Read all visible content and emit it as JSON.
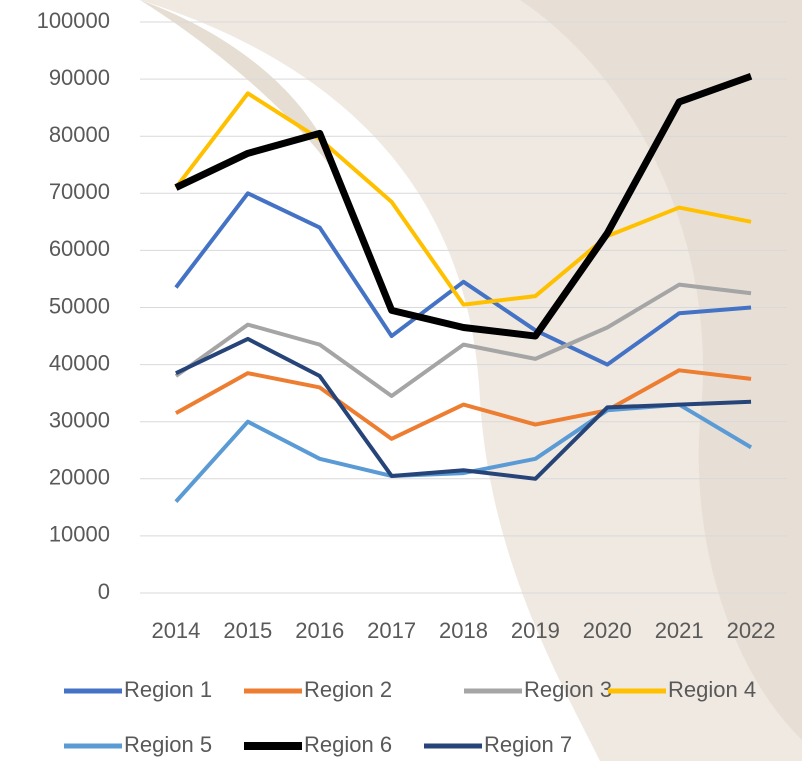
{
  "chart_data": {
    "type": "line",
    "x": [
      "2014",
      "2015",
      "2016",
      "2017",
      "2018",
      "2019",
      "2020",
      "2021",
      "2022"
    ],
    "series": [
      {
        "name": "Region 1",
        "color": "#4472c4",
        "linewidth": 4,
        "values": [
          53500,
          70000,
          64000,
          45000,
          54500,
          46000,
          40000,
          49000,
          50000
        ]
      },
      {
        "name": "Region 2",
        "color": "#ed7d31",
        "linewidth": 4,
        "values": [
          31500,
          38500,
          36000,
          27000,
          33000,
          29500,
          32000,
          39000,
          37500
        ]
      },
      {
        "name": "Region 3",
        "color": "#a5a5a5",
        "linewidth": 4,
        "values": [
          38000,
          47000,
          43500,
          34500,
          43500,
          41000,
          46500,
          54000,
          52500
        ]
      },
      {
        "name": "Region 4",
        "color": "#ffc000",
        "linewidth": 4,
        "values": [
          71000,
          87500,
          79500,
          68500,
          50500,
          52000,
          62500,
          67500,
          65000
        ]
      },
      {
        "name": "Region 5",
        "color": "#5b9bd5",
        "linewidth": 4,
        "values": [
          16000,
          30000,
          23500,
          20500,
          21000,
          23500,
          32000,
          33000,
          25500
        ]
      },
      {
        "name": "Region 6",
        "color": "#000000",
        "linewidth": 7,
        "values": [
          71000,
          77000,
          80500,
          49500,
          46500,
          45000,
          63000,
          86000,
          90500
        ]
      },
      {
        "name": "Region 7",
        "color": "#264478",
        "linewidth": 4,
        "values": [
          38500,
          44500,
          38000,
          20500,
          21500,
          20000,
          32500,
          33000,
          33500
        ]
      }
    ],
    "ylim": [
      0,
      100000
    ],
    "yticks": [
      0,
      10000,
      20000,
      30000,
      40000,
      50000,
      60000,
      70000,
      80000,
      90000,
      100000
    ],
    "grid": true,
    "legend": "bottom"
  }
}
